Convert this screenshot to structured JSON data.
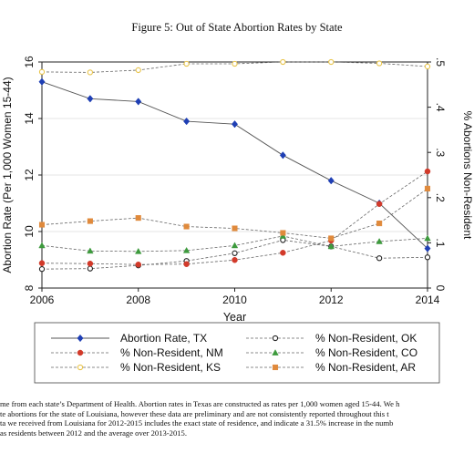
{
  "chart_data": {
    "type": "line",
    "title": "Figure 5: Out of State Abortion Rates by State",
    "x": [
      2006,
      2007,
      2008,
      2009,
      2010,
      2011,
      2012,
      2013,
      2014
    ],
    "xlabel": "Year",
    "x_ticks": [
      "2006",
      "2008",
      "2010",
      "2012",
      "2014"
    ],
    "xlim": [
      2006,
      2014
    ],
    "ylabel_left": "Abortion Rate (Per 1,000 Women 15-44)",
    "ylim_left": [
      8,
      16
    ],
    "y_ticks_left": [
      "8",
      "10",
      "12",
      "14",
      "16"
    ],
    "ylabel_right": "% Abortions Non-Resident",
    "ylim_right": [
      0,
      0.5
    ],
    "y_ticks_right": [
      "0",
      ".1",
      ".2",
      ".3",
      ".4",
      ".5"
    ],
    "grid": "horizontal",
    "series": [
      {
        "name": "Abortion Rate, TX",
        "axis": "left",
        "marker": "diamond",
        "color": "#1f3fb4",
        "line": "solid",
        "values": [
          15.3,
          14.7,
          14.6,
          13.9,
          13.8,
          12.7,
          11.8,
          11.0,
          9.4
        ]
      },
      {
        "name": "% Non-Resident, OK",
        "axis": "right",
        "marker": "open-circle",
        "color": "#222222",
        "line": "dashed",
        "values": [
          0.042,
          0.043,
          0.05,
          0.06,
          0.077,
          0.106,
          0.092,
          0.066,
          0.068
        ]
      },
      {
        "name": "% Non-Resident, NM",
        "axis": "right",
        "marker": "circle",
        "color": "#d23a2a",
        "line": "dashed",
        "values": [
          0.055,
          0.054,
          0.052,
          0.053,
          0.062,
          0.078,
          0.105,
          0.186,
          0.258
        ]
      },
      {
        "name": "% Non-Resident, CO",
        "axis": "right",
        "marker": "triangle",
        "color": "#3d9a3d",
        "line": "dashed",
        "values": [
          0.094,
          0.082,
          0.081,
          0.083,
          0.094,
          0.115,
          0.092,
          0.103,
          0.11
        ]
      },
      {
        "name": "% Non-Resident, KS",
        "axis": "right",
        "marker": "open-circle",
        "color": "#e8c44a",
        "line": "dashed",
        "values": [
          0.478,
          0.477,
          0.482,
          0.496,
          0.496,
          0.5,
          0.5,
          0.497,
          0.49
        ]
      },
      {
        "name": "% Non-Resident, AR",
        "axis": "right",
        "marker": "square",
        "color": "#e08a3c",
        "line": "dashed",
        "values": [
          0.14,
          0.148,
          0.155,
          0.136,
          0.132,
          0.122,
          0.11,
          0.143,
          0.22
        ]
      }
    ],
    "legend": {
      "position": "bottom",
      "columns": 2
    }
  },
  "caption_lines": [
    "me from each state’s Department of Health. Abortion rates in Texas are constructed as rates per 1,000 women aged 15-44. We h",
    "te abortions for the state of Louisiana, however these data are preliminary and are not consistently reported throughout this t",
    "ta we received from Louisiana for 2012-2015 includes the exact state of residence, and indicate a 31.5% increase in the numb",
    "as residents between 2012 and the average over 2013-2015."
  ]
}
